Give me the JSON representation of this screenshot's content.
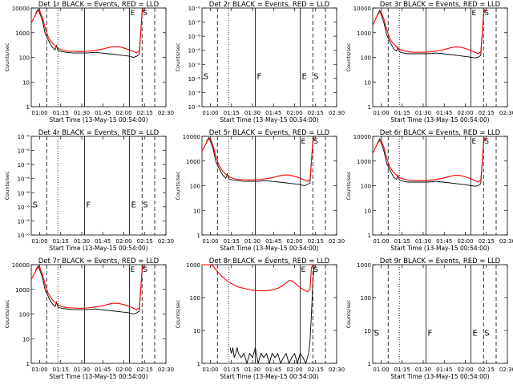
{
  "figure": {
    "ylabel": "Counts/sec",
    "xlabel": "Start Time (13-May-15 00:54:00)",
    "xticks": [
      "01:00",
      "01:15",
      "01:30",
      "01:45",
      "02:00",
      "02:15",
      "02:30"
    ],
    "colors": {
      "events": "#000000",
      "lld": "#ff0000",
      "markers": "#000000"
    },
    "markers": {
      "dash1": 71,
      "dot": 79,
      "solid": 98,
      "dash2": 130,
      "dash3": 139
    },
    "marker_labels": {
      "S1": "S",
      "F": "F",
      "E": "E",
      "S2": "S"
    }
  },
  "chart_data": [
    {
      "type": "line",
      "title": "Det 1r BLACK = Events, RED = LLD",
      "yscale": "log",
      "ylim": [
        1,
        10000
      ],
      "yticks": [
        "1",
        "10",
        "100",
        "1000",
        "10000"
      ],
      "xlim_minutes": [
        60,
        156
      ],
      "series": [
        {
          "name": "Events",
          "color": "#000000",
          "x": [
            63,
            65,
            68,
            70,
            71,
            73,
            75,
            77,
            78,
            79,
            80,
            82,
            85,
            90,
            95,
            100,
            105,
            110,
            115,
            120,
            125,
            128,
            130,
            133,
            135,
            137,
            138,
            139,
            140
          ],
          "y": [
            6000,
            9000,
            3000,
            900,
            700,
            400,
            260,
            200,
            300,
            190,
            180,
            170,
            160,
            150,
            150,
            150,
            160,
            150,
            140,
            130,
            120,
            115,
            110,
            100,
            110,
            130,
            900,
            6000,
            9000
          ]
        },
        {
          "name": "LLD",
          "color": "#ff0000",
          "x": [
            60,
            62,
            64,
            66,
            68,
            70,
            72,
            74,
            76,
            78,
            80,
            83,
            86,
            90,
            95,
            100,
            105,
            110,
            115,
            118,
            122,
            126,
            130,
            133,
            135,
            137,
            138,
            139,
            140
          ],
          "y": [
            2500,
            4000,
            7000,
            8000,
            4000,
            1500,
            700,
            450,
            330,
            260,
            220,
            190,
            180,
            175,
            170,
            175,
            190,
            210,
            250,
            270,
            270,
            240,
            200,
            170,
            150,
            180,
            900,
            7000,
            10000
          ]
        }
      ]
    },
    {
      "type": "line",
      "title": "Det 2r BLACK = Events, RED = LLD",
      "yscale": "log",
      "ylim": [
        1e-06,
        1e-07
      ],
      "yticks": [
        "10⁻⁶",
        "10⁻⁶",
        "10⁻⁶",
        "10⁻⁶",
        "10⁻⁶",
        "10⁻⁶",
        "10⁻⁶",
        "10⁻⁶"
      ],
      "xlim_minutes": [
        60,
        156
      ],
      "series": []
    },
    {
      "type": "line",
      "title": "Det 3r BLACK = Events, RED = LLD",
      "yscale": "log",
      "ylim": [
        1,
        10000
      ],
      "yticks": [
        "1",
        "10",
        "100",
        "1000",
        "10000"
      ],
      "xlim_minutes": [
        60,
        156
      ],
      "series": [
        {
          "name": "Events",
          "color": "#000000",
          "x": [
            63,
            65,
            68,
            70,
            71,
            73,
            75,
            77,
            78,
            79,
            80,
            82,
            85,
            90,
            95,
            100,
            105,
            110,
            115,
            120,
            125,
            128,
            130,
            133,
            135,
            137,
            138,
            139,
            140
          ],
          "y": [
            5000,
            8000,
            2500,
            800,
            600,
            350,
            220,
            180,
            260,
            170,
            160,
            150,
            140,
            140,
            140,
            140,
            150,
            140,
            130,
            120,
            110,
            105,
            100,
            95,
            100,
            120,
            800,
            5000,
            9000
          ]
        },
        {
          "name": "LLD",
          "color": "#ff0000",
          "x": [
            60,
            62,
            64,
            66,
            68,
            70,
            72,
            74,
            76,
            78,
            80,
            83,
            86,
            90,
            95,
            100,
            105,
            110,
            115,
            118,
            122,
            126,
            130,
            133,
            135,
            137,
            138,
            139,
            140
          ],
          "y": [
            2000,
            3500,
            6000,
            7000,
            3500,
            1300,
            600,
            400,
            300,
            240,
            200,
            180,
            165,
            160,
            160,
            165,
            180,
            200,
            240,
            260,
            260,
            230,
            190,
            160,
            140,
            170,
            800,
            6000,
            9000
          ]
        }
      ]
    },
    {
      "type": "line",
      "title": "Det 4r BLACK = Events, RED = LLD",
      "yscale": "log",
      "ylim": [
        1e-06,
        1e-07
      ],
      "yticks": [
        "10⁻⁶",
        "10⁻⁶",
        "10⁻⁶",
        "10⁻⁶",
        "10⁻⁶",
        "10⁻⁶",
        "10⁻⁶",
        "10⁻⁶"
      ],
      "xlim_minutes": [
        60,
        156
      ],
      "series": []
    },
    {
      "type": "line",
      "title": "Det 5r BLACK = Events, RED = LLD",
      "yscale": "log",
      "ylim": [
        1,
        10000
      ],
      "yticks": [
        "1",
        "10",
        "100",
        "1000",
        "10000"
      ],
      "xlim_minutes": [
        60,
        156
      ],
      "series": [
        {
          "name": "Events",
          "color": "#000000",
          "x": [
            63,
            65,
            68,
            70,
            71,
            73,
            75,
            77,
            78,
            79,
            80,
            82,
            85,
            90,
            95,
            100,
            105,
            110,
            115,
            120,
            125,
            128,
            130,
            133,
            135,
            137,
            138,
            139,
            140
          ],
          "y": [
            6000,
            9000,
            3000,
            900,
            700,
            400,
            260,
            200,
            300,
            190,
            180,
            170,
            160,
            150,
            150,
            150,
            160,
            150,
            140,
            130,
            120,
            115,
            110,
            100,
            110,
            130,
            900,
            6000,
            9000
          ]
        },
        {
          "name": "LLD",
          "color": "#ff0000",
          "x": [
            60,
            62,
            64,
            66,
            68,
            70,
            72,
            74,
            76,
            78,
            80,
            83,
            86,
            90,
            95,
            100,
            105,
            110,
            115,
            118,
            122,
            126,
            130,
            133,
            135,
            137,
            138,
            139,
            140
          ],
          "y": [
            2500,
            4000,
            7000,
            8000,
            4000,
            1500,
            700,
            450,
            330,
            260,
            220,
            190,
            180,
            175,
            170,
            175,
            190,
            210,
            250,
            270,
            270,
            240,
            200,
            170,
            150,
            180,
            900,
            7000,
            10000
          ]
        }
      ]
    },
    {
      "type": "line",
      "title": "Det 6r BLACK = Events, RED = LLD",
      "yscale": "log",
      "ylim": [
        1,
        10000
      ],
      "yticks": [
        "1",
        "10",
        "100",
        "1000",
        "10000"
      ],
      "xlim_minutes": [
        60,
        156
      ],
      "series": [
        {
          "name": "Events",
          "color": "#000000",
          "x": [
            63,
            65,
            68,
            70,
            71,
            73,
            75,
            77,
            78,
            79,
            80,
            82,
            85,
            90,
            95,
            100,
            105,
            110,
            115,
            120,
            125,
            128,
            130,
            133,
            135,
            137,
            138,
            139,
            140
          ],
          "y": [
            5000,
            8000,
            2500,
            800,
            600,
            350,
            220,
            180,
            260,
            170,
            160,
            150,
            140,
            140,
            140,
            140,
            150,
            140,
            130,
            120,
            110,
            105,
            100,
            95,
            100,
            120,
            800,
            5000,
            9000
          ]
        },
        {
          "name": "LLD",
          "color": "#ff0000",
          "x": [
            60,
            62,
            64,
            66,
            68,
            70,
            72,
            74,
            76,
            78,
            80,
            83,
            86,
            90,
            95,
            100,
            105,
            110,
            115,
            118,
            122,
            126,
            130,
            133,
            135,
            137,
            138,
            139,
            140
          ],
          "y": [
            2000,
            3500,
            6000,
            7000,
            3500,
            1300,
            600,
            400,
            300,
            240,
            200,
            180,
            165,
            160,
            160,
            165,
            180,
            200,
            240,
            260,
            260,
            230,
            190,
            160,
            140,
            170,
            800,
            6000,
            9000
          ]
        }
      ]
    },
    {
      "type": "line",
      "title": "Det 7r BLACK = Events, RED = LLD",
      "yscale": "log",
      "ylim": [
        1,
        10000
      ],
      "yticks": [
        "1",
        "10",
        "100",
        "1000",
        "10000"
      ],
      "xlim_minutes": [
        60,
        156
      ],
      "series": [
        {
          "name": "Events",
          "color": "#000000",
          "x": [
            63,
            65,
            68,
            70,
            71,
            73,
            75,
            77,
            78,
            79,
            80,
            82,
            85,
            90,
            95,
            100,
            105,
            110,
            115,
            120,
            125,
            128,
            130,
            133,
            135,
            137,
            138,
            139,
            140
          ],
          "y": [
            6000,
            9000,
            3000,
            900,
            700,
            400,
            260,
            200,
            300,
            190,
            180,
            170,
            160,
            150,
            150,
            150,
            160,
            150,
            140,
            130,
            120,
            115,
            110,
            100,
            110,
            130,
            900,
            6000,
            9000
          ]
        },
        {
          "name": "LLD",
          "color": "#ff0000",
          "x": [
            60,
            62,
            64,
            66,
            68,
            70,
            72,
            74,
            76,
            78,
            80,
            83,
            86,
            90,
            95,
            100,
            105,
            110,
            115,
            118,
            122,
            126,
            130,
            133,
            135,
            137,
            138,
            139,
            140
          ],
          "y": [
            2500,
            4000,
            7000,
            8000,
            4000,
            1500,
            700,
            450,
            330,
            260,
            220,
            190,
            180,
            175,
            170,
            175,
            190,
            210,
            250,
            270,
            270,
            240,
            200,
            170,
            150,
            180,
            900,
            7000,
            10000
          ]
        }
      ]
    },
    {
      "type": "line",
      "title": "Det 8r BLACK = Events, RED = LLD",
      "yscale": "log",
      "ylim": [
        1,
        1000
      ],
      "yticks": [
        "1",
        "10",
        "100",
        "1000"
      ],
      "xlim_minutes": [
        60,
        156
      ],
      "series": [
        {
          "name": "Events",
          "color": "#000000",
          "x": [
            80,
            81,
            82,
            83,
            84,
            85,
            86,
            88,
            90,
            92,
            94,
            96,
            98,
            100,
            102,
            104,
            106,
            108,
            110,
            112,
            114,
            116,
            118,
            120,
            122,
            124,
            126,
            128,
            130,
            132,
            134,
            136,
            137,
            138,
            139,
            140
          ],
          "y": [
            3,
            2,
            3,
            1.5,
            2,
            3,
            2,
            1.5,
            2,
            1,
            2,
            1.5,
            3,
            1,
            2,
            1.5,
            2,
            1,
            2,
            1.5,
            2,
            1,
            1.5,
            2,
            1,
            1.5,
            2,
            1,
            2,
            1.5,
            1,
            2,
            5,
            30,
            300,
            1000
          ]
        },
        {
          "name": "LLD",
          "color": "#ff0000",
          "x": [
            60,
            62,
            64,
            66,
            68,
            70,
            72,
            74,
            76,
            78,
            80,
            83,
            86,
            90,
            95,
            100,
            105,
            110,
            115,
            118,
            120,
            122,
            124,
            126,
            128,
            130,
            133,
            135,
            137,
            138,
            139,
            140
          ],
          "y": [
            1000,
            1000,
            1000,
            1000,
            900,
            700,
            550,
            450,
            380,
            320,
            280,
            240,
            210,
            190,
            170,
            160,
            160,
            170,
            200,
            240,
            280,
            330,
            320,
            280,
            240,
            200,
            170,
            150,
            180,
            800,
            1000,
            1000
          ]
        }
      ]
    },
    {
      "type": "line",
      "title": "Det 9r BLACK = Events, RED = LLD",
      "yscale": "log",
      "ylim": [
        1,
        1000
      ],
      "yticks": [
        "1",
        "10",
        "100",
        "1000"
      ],
      "xlim_minutes": [
        60,
        156
      ],
      "series": []
    }
  ]
}
